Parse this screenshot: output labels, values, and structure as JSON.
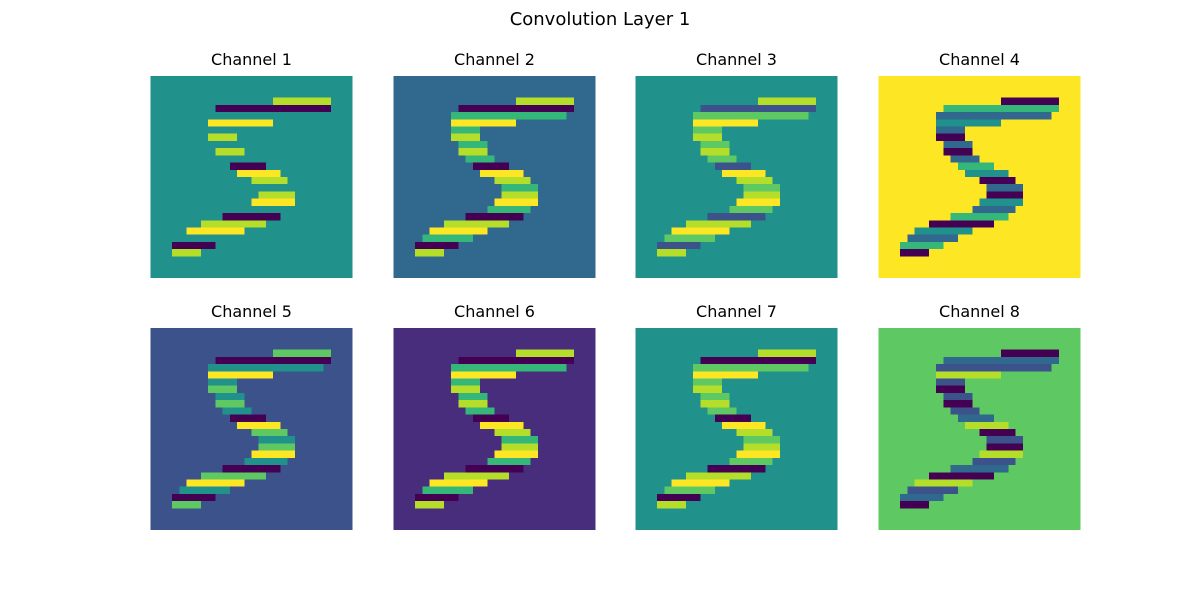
{
  "figure": {
    "title": "Convolution Layer 1"
  },
  "panels": [
    {
      "title": "Channel 1",
      "background": "#21918c",
      "stroke_colors": {
        "left": "#440154",
        "center": "#21918c",
        "right": "#b5de2b",
        "accent": "#fde725"
      }
    },
    {
      "title": "Channel 2",
      "background": "#31688e",
      "stroke_colors": {
        "left": "#440154",
        "center": "#35b779",
        "right": "#b5de2b",
        "accent": "#fde725"
      }
    },
    {
      "title": "Channel 3",
      "background": "#21918c",
      "stroke_colors": {
        "left": "#3b528b",
        "center": "#5ec962",
        "right": "#b5de2b",
        "accent": "#fde725"
      }
    },
    {
      "title": "Channel 4",
      "background": "#fde725",
      "stroke_colors": {
        "left": "#35b779",
        "center": "#31688e",
        "right": "#440154",
        "accent": "#21918c"
      }
    },
    {
      "title": "Channel 5",
      "background": "#3b528b",
      "stroke_colors": {
        "left": "#440154",
        "center": "#21918c",
        "right": "#5ec962",
        "accent": "#fde725"
      }
    },
    {
      "title": "Channel 6",
      "background": "#472d7b",
      "stroke_colors": {
        "left": "#440154",
        "center": "#35b779",
        "right": "#b5de2b",
        "accent": "#fde725"
      }
    },
    {
      "title": "Channel 7",
      "background": "#21918c",
      "stroke_colors": {
        "left": "#440154",
        "center": "#5ec962",
        "right": "#b5de2b",
        "accent": "#fde725"
      }
    },
    {
      "title": "Channel 8",
      "background": "#5ec962",
      "stroke_colors": {
        "left": "#31688e",
        "center": "#3b528b",
        "right": "#440154",
        "accent": "#b5de2b"
      }
    }
  ]
}
